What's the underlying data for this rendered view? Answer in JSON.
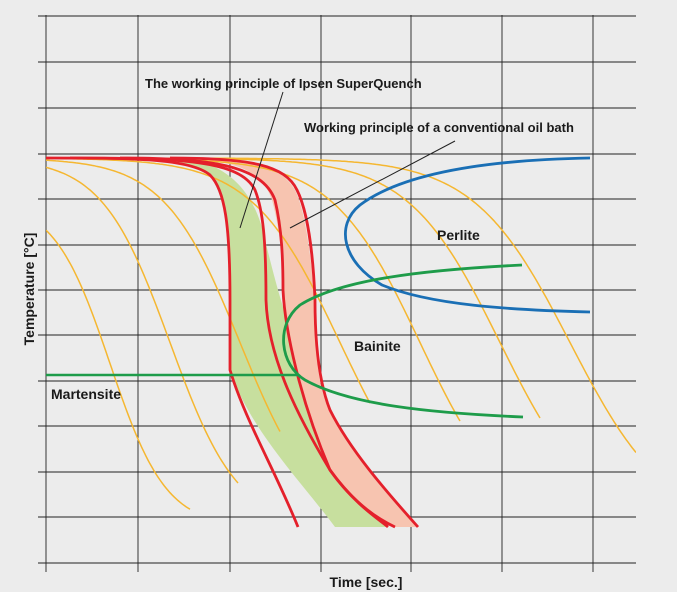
{
  "diagram": {
    "xlabel": "Time [sec.]",
    "ylabel": "Temperature [°C]",
    "annotations": {
      "superquench": "The working principle of Ipsen SuperQuench",
      "oil_bath": "Working principle of a conventional oil bath"
    },
    "regions": {
      "perlite": "Perlite",
      "bainite": "Bainite",
      "martensite": "Martensite"
    },
    "grid": true,
    "colors": {
      "background": "#ececec",
      "grid": "#222222",
      "cooling_curves": "#f5b731",
      "quench_curves": "#e4202b",
      "superquench_band": "#c7df9e",
      "oil_bath_band": "#f7c4b0",
      "perlite_curve": "#1a6fb5",
      "bainite_martensite_curve": "#1e9c4a"
    }
  }
}
